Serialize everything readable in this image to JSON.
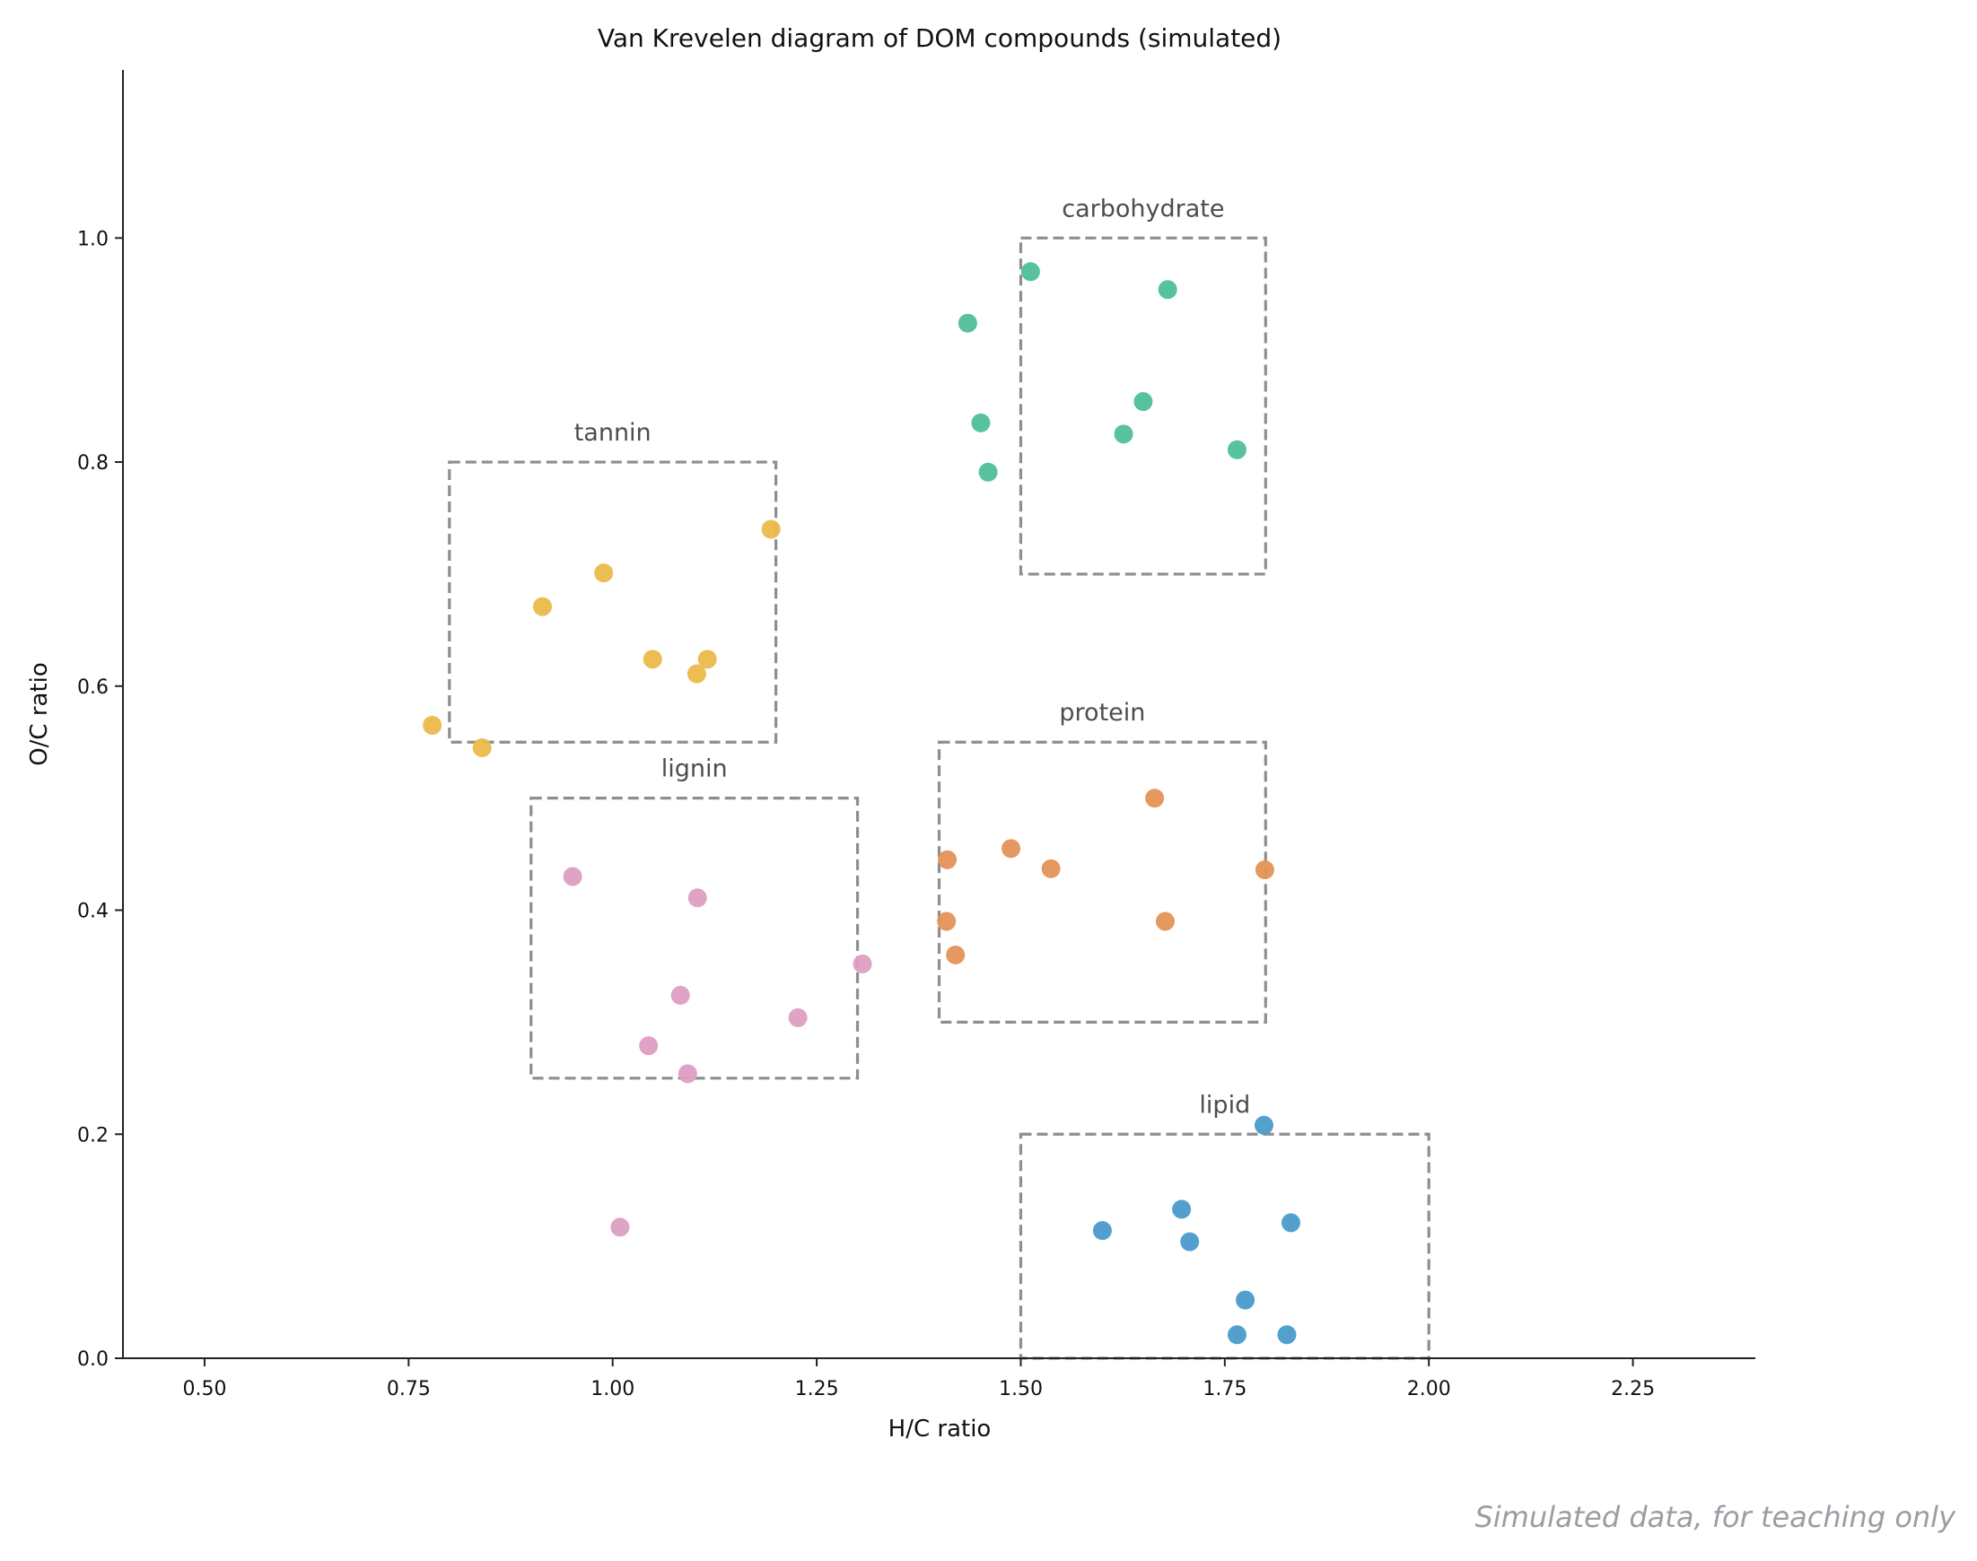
{
  "chart_data": {
    "type": "scatter",
    "title": "Van Krevelen diagram of DOM compounds (simulated)",
    "xlabel": "H/C ratio",
    "ylabel": "O/C ratio",
    "xlim": [
      0.4,
      2.4
    ],
    "ylim": [
      0.0,
      1.15
    ],
    "xticks": [
      "0.50",
      "0.75",
      "1.00",
      "1.25",
      "1.50",
      "1.75",
      "2.00",
      "2.25"
    ],
    "yticks": [
      "0.0",
      "0.2",
      "0.4",
      "0.6",
      "0.8",
      "1.0"
    ],
    "grid": false,
    "legend": "none",
    "regions": [
      {
        "name": "carbohydrate",
        "x": [
          1.5,
          1.8
        ],
        "y": [
          0.7,
          1.0
        ]
      },
      {
        "name": "tannin",
        "x": [
          0.8,
          1.2
        ],
        "y": [
          0.55,
          0.8
        ]
      },
      {
        "name": "lignin",
        "x": [
          0.9,
          1.3
        ],
        "y": [
          0.25,
          0.5
        ]
      },
      {
        "name": "protein",
        "x": [
          1.4,
          1.8
        ],
        "y": [
          0.3,
          0.55
        ]
      },
      {
        "name": "lipid",
        "x": [
          1.5,
          2.0
        ],
        "y": [
          0.0,
          0.2
        ]
      }
    ],
    "series": [
      {
        "color": "#4fbe98",
        "points": [
          [
            1.512,
            0.97
          ],
          [
            1.68,
            0.954
          ],
          [
            1.435,
            0.924
          ],
          [
            1.65,
            0.854
          ],
          [
            1.451,
            0.835
          ],
          [
            1.626,
            0.825
          ],
          [
            1.765,
            0.811
          ],
          [
            1.46,
            0.791
          ]
        ]
      },
      {
        "color": "#ebb94a",
        "points": [
          [
            1.194,
            0.74
          ],
          [
            0.989,
            0.701
          ],
          [
            0.914,
            0.671
          ],
          [
            1.049,
            0.624
          ],
          [
            1.116,
            0.624
          ],
          [
            1.103,
            0.611
          ],
          [
            0.779,
            0.565
          ],
          [
            0.84,
            0.545
          ]
        ]
      },
      {
        "color": "#dd9ec3",
        "points": [
          [
            0.951,
            0.43
          ],
          [
            1.104,
            0.411
          ],
          [
            1.306,
            0.352
          ],
          [
            1.083,
            0.324
          ],
          [
            1.227,
            0.304
          ],
          [
            1.044,
            0.279
          ],
          [
            1.092,
            0.254
          ],
          [
            1.009,
            0.117
          ]
        ]
      },
      {
        "color": "#e49256",
        "points": [
          [
            1.664,
            0.5
          ],
          [
            1.488,
            0.455
          ],
          [
            1.41,
            0.445
          ],
          [
            1.537,
            0.437
          ],
          [
            1.799,
            0.436
          ],
          [
            1.409,
            0.39
          ],
          [
            1.677,
            0.39
          ],
          [
            1.42,
            0.36
          ]
        ]
      },
      {
        "color": "#4a9acb",
        "points": [
          [
            1.798,
            0.208
          ],
          [
            1.697,
            0.133
          ],
          [
            1.831,
            0.121
          ],
          [
            1.6,
            0.114
          ],
          [
            1.707,
            0.104
          ],
          [
            1.775,
            0.052
          ],
          [
            1.765,
            0.021
          ],
          [
            1.826,
            0.021
          ]
        ]
      }
    ]
  },
  "footnote": "Simulated data, for teaching only"
}
